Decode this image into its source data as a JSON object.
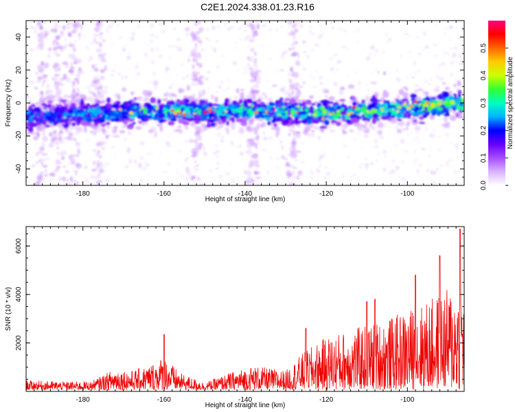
{
  "figure": {
    "title": "C2E1.2024.338.01.23.R16"
  },
  "chart_data": [
    {
      "type": "heatmap",
      "xlabel": "Height of straight line (km)",
      "ylabel": "Frequency (Hz)",
      "xlim": [
        -194,
        -86
      ],
      "ylim": [
        -50,
        50
      ],
      "xticks": [
        -180,
        -160,
        -140,
        -120,
        -100
      ],
      "yticks": [
        -40,
        -20,
        0,
        20,
        40
      ],
      "colorbar": {
        "label": "Normalized spectral amplitude",
        "range": [
          0,
          0.6
        ],
        "ticks": [
          0.0,
          0.1,
          0.2,
          0.3,
          0.4,
          0.5
        ],
        "colormap": [
          "#ffffff",
          "#d9b3ff",
          "#a64dff",
          "#6600ff",
          "#0000ff",
          "#00b3ff",
          "#00ffc0",
          "#33ff33",
          "#ccff00",
          "#ffcc00",
          "#ff6600",
          "#ff0000",
          "#ff0080"
        ]
      },
      "center_frequency": [
        {
          "x": -194,
          "y": -8
        },
        {
          "x": -180,
          "y": -7
        },
        {
          "x": -160,
          "y": -5
        },
        {
          "x": -140,
          "y": -5
        },
        {
          "x": -120,
          "y": -6
        },
        {
          "x": -110,
          "y": -5
        },
        {
          "x": -100,
          "y": -3
        },
        {
          "x": -86,
          "y": 0
        }
      ],
      "vertical_streaks_x": [
        -190,
        -186,
        -182,
        -176,
        -152,
        -138,
        -128
      ]
    },
    {
      "type": "line",
      "xlabel": "Height of straight line (km)",
      "ylabel": "SNR (10 * v/v)",
      "xlim": [
        -194,
        -86
      ],
      "ylim": [
        0,
        6800
      ],
      "xticks": [
        -180,
        -160,
        -140,
        -120,
        -100
      ],
      "yticks": [
        2000,
        4000,
        6000
      ],
      "line_color": "#ee0000",
      "envelope": [
        {
          "x": -194,
          "y": 400
        },
        {
          "x": -185,
          "y": 350
        },
        {
          "x": -178,
          "y": 350
        },
        {
          "x": -172,
          "y": 900
        },
        {
          "x": -168,
          "y": 800
        },
        {
          "x": -164,
          "y": 1000
        },
        {
          "x": -160,
          "y": 1400
        },
        {
          "x": -156,
          "y": 700
        },
        {
          "x": -150,
          "y": 300
        },
        {
          "x": -144,
          "y": 700
        },
        {
          "x": -138,
          "y": 1000
        },
        {
          "x": -130,
          "y": 800
        },
        {
          "x": -126,
          "y": 1500
        },
        {
          "x": -120,
          "y": 2200
        },
        {
          "x": -112,
          "y": 2600
        },
        {
          "x": -104,
          "y": 3000
        },
        {
          "x": -96,
          "y": 3600
        },
        {
          "x": -90,
          "y": 4200
        },
        {
          "x": -86,
          "y": 4400
        }
      ],
      "peaks": [
        {
          "x": -160,
          "y": 2350
        },
        {
          "x": -125,
          "y": 2600
        },
        {
          "x": -110,
          "y": 3700
        },
        {
          "x": -108,
          "y": 3800
        },
        {
          "x": -98,
          "y": 4800
        },
        {
          "x": -92,
          "y": 5600
        },
        {
          "x": -87,
          "y": 6700
        }
      ]
    }
  ]
}
